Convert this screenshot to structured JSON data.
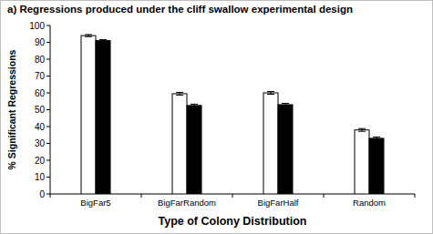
{
  "chart_data": {
    "type": "bar",
    "title": "a) Regressions produced under the cliff swallow experimental design",
    "x_label": "Type of Colony Distribution",
    "y_label": "% Significant Regressions",
    "categories": [
      "BigFar5",
      "BigFarRandom",
      "BigFarHalf",
      "Random"
    ],
    "series": [
      {
        "color": "#ffffff",
        "values": [
          94,
          59.5,
          60,
          38
        ],
        "errors": [
          0.6,
          0.8,
          0.8,
          0.8
        ]
      },
      {
        "color": "#000000",
        "values": [
          91,
          52.5,
          53,
          33
        ],
        "errors": [
          0.6,
          0.8,
          0.8,
          0.8
        ]
      }
    ],
    "ylim": [
      0,
      100
    ],
    "yticks": [
      0,
      10,
      20,
      30,
      40,
      50,
      60,
      70,
      80,
      90,
      100
    ],
    "grid": false
  }
}
